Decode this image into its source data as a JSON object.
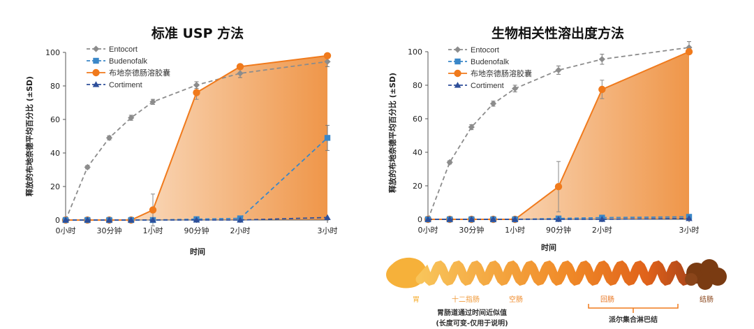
{
  "colors": {
    "entocort": "#8c8c8c",
    "budenofalk": "#3a87c8",
    "budesonide_capsule": "#f07a1c",
    "cortiment": "#2e4f9a",
    "fill_light": "#fdebd9",
    "fill_dark": "#f09a50",
    "legend_orange_text": "#e8741e",
    "gi_stomach": "#f6b13a",
    "gi_colon": "#7a3b12",
    "gi_label": "#f07a1c",
    "gi_bracket": "#f07a1c"
  },
  "icons": {
    "entocort": "diamond-marker",
    "budenofalk": "square-marker",
    "budesonide_capsule": "circle-marker",
    "cortiment": "triangle-marker"
  },
  "chart_data": [
    {
      "type": "line",
      "title": "标准 USP 方法",
      "xlabel": "时间",
      "ylabel": "释放的布地奈德平均百分比 (±SD)",
      "ylim": [
        0,
        100
      ],
      "yticks": [
        "0",
        "20",
        "40",
        "60",
        "80",
        "100"
      ],
      "x": [
        0,
        15,
        30,
        45,
        60,
        90,
        120,
        180
      ],
      "xlim": [
        0,
        180
      ],
      "xtick_values": [
        0,
        30,
        60,
        90,
        120,
        180
      ],
      "xtick_labels": [
        "0小时",
        "30分钟",
        "1小时",
        "90分钟",
        "2小时",
        "3小时"
      ],
      "grid": false,
      "legend_position": "top-left",
      "shaded_series": "布地奈德肠溶胶囊",
      "series": [
        {
          "name": "Entocort",
          "style": "dashed",
          "marker": "diamond",
          "color_key": "entocort",
          "x": [
            0,
            15,
            30,
            45,
            60,
            90,
            120,
            180
          ],
          "values": [
            0,
            31.5,
            49,
            61,
            70.5,
            80.5,
            87.5,
            94.5
          ],
          "err": [
            0,
            1,
            1.2,
            1.5,
            1.5,
            2,
            2.5,
            3
          ]
        },
        {
          "name": "Budenofalk",
          "style": "dashed",
          "marker": "square",
          "color_key": "budenofalk",
          "x": [
            0,
            15,
            30,
            45,
            60,
            90,
            120,
            180
          ],
          "values": [
            0,
            0,
            0,
            0,
            0,
            0.5,
            1,
            49
          ],
          "err": [
            0,
            0,
            0,
            0,
            0,
            0,
            0,
            7.5
          ]
        },
        {
          "name": "布地奈德肠溶胶囊",
          "style": "solid",
          "marker": "circle",
          "color_key": "budesonide_capsule",
          "x": [
            0,
            15,
            30,
            45,
            60,
            90,
            120,
            180
          ],
          "values": [
            0,
            0,
            0,
            0,
            6,
            76,
            91.5,
            98
          ],
          "err": [
            0,
            0,
            0,
            0,
            9.5,
            4,
            1,
            1
          ]
        },
        {
          "name": "Cortiment",
          "style": "dashed",
          "marker": "triangle",
          "color_key": "cortiment",
          "x": [
            0,
            15,
            30,
            45,
            60,
            90,
            120,
            180
          ],
          "values": [
            0,
            0,
            0,
            0,
            0,
            0,
            0,
            1.5
          ],
          "err": [
            0,
            0,
            0,
            0,
            0,
            0,
            0,
            0
          ]
        }
      ]
    },
    {
      "type": "line",
      "title": "生物相关性溶出度方法",
      "xlabel": "时间",
      "ylabel": "释放的布地奈德平均百分比 (±SD)",
      "ylim": [
        0,
        100
      ],
      "yticks": [
        "0",
        "20",
        "40",
        "60",
        "80",
        "100"
      ],
      "x": [
        0,
        15,
        30,
        45,
        60,
        90,
        120,
        180
      ],
      "xlim": [
        0,
        180
      ],
      "xtick_values": [
        0,
        30,
        60,
        90,
        120,
        180
      ],
      "xtick_labels": [
        "0小时",
        "30分钟",
        "1小时",
        "90分钟",
        "2小时",
        "3小时"
      ],
      "grid": false,
      "legend_position": "top-left",
      "shaded_series": "布地奈德肠溶胶囊",
      "series": [
        {
          "name": "Entocort",
          "style": "dashed",
          "marker": "diamond",
          "color_key": "entocort",
          "x": [
            0,
            15,
            30,
            45,
            60,
            90,
            120,
            180
          ],
          "values": [
            0,
            34,
            55,
            69,
            78,
            89,
            95.5,
            102.5
          ],
          "err": [
            0,
            1,
            1.5,
            1.5,
            2,
            2.5,
            3,
            3.5
          ]
        },
        {
          "name": "Budenofalk",
          "style": "dashed",
          "marker": "square",
          "color_key": "budenofalk",
          "x": [
            0,
            15,
            30,
            45,
            60,
            90,
            120,
            180
          ],
          "values": [
            0,
            0,
            0,
            0,
            0,
            0.5,
            1,
            1.5
          ],
          "err": [
            0,
            0,
            0,
            0,
            0,
            0,
            0,
            0
          ]
        },
        {
          "name": "布地奈德肠溶胶囊",
          "style": "solid",
          "marker": "circle",
          "color_key": "budesonide_capsule",
          "x": [
            0,
            15,
            30,
            45,
            60,
            90,
            120,
            180
          ],
          "values": [
            0,
            0,
            0,
            0,
            0,
            19.5,
            77.5,
            100
          ],
          "err": [
            0,
            0,
            0,
            0,
            0,
            15,
            5.5,
            1
          ]
        },
        {
          "name": "Cortiment",
          "style": "dashed",
          "marker": "triangle",
          "color_key": "cortiment",
          "x": [
            0,
            15,
            30,
            45,
            60,
            90,
            120,
            180
          ],
          "values": [
            0,
            0,
            0,
            0,
            0,
            0,
            0,
            0.5
          ],
          "err": [
            0,
            0,
            0,
            0,
            0,
            0,
            0,
            0
          ]
        }
      ]
    }
  ],
  "gi_tract": {
    "labels": {
      "stomach": "胃",
      "duodenum": "十二指肠",
      "jejunum": "空肠",
      "ileum": "回肠",
      "colon": "结肠"
    },
    "transit_note_line1": "胃肠道通过时间近似值",
    "transit_note_line2": "(长度可变-仅用于说明)",
    "peyers_patches": "派尔集合淋巴结"
  }
}
